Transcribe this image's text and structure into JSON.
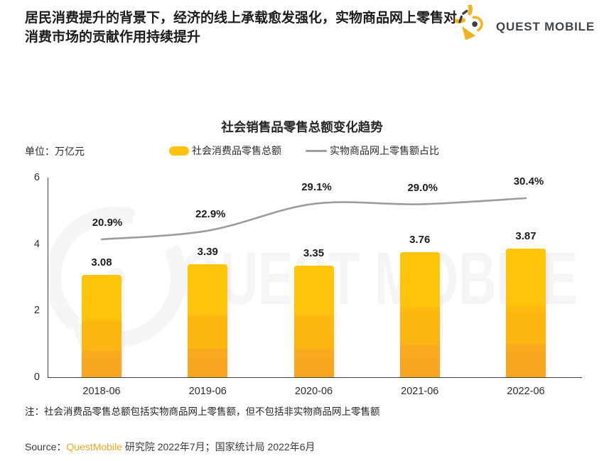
{
  "header": {
    "title": "居民消费提升的背景下，经济的线上承载愈发强化，实物商品网上零售对消费市场的贡献作用持续提升"
  },
  "logo": {
    "brand_text": "QUEST MOBILE"
  },
  "chart_data": {
    "type": "bar",
    "title": "社会销售品零售总额变化趋势",
    "unit_label": "单位：万亿元",
    "categories": [
      "2018-06",
      "2019-06",
      "2020-06",
      "2021-06",
      "2022-06"
    ],
    "series": [
      {
        "name": "社会消费品零售总额",
        "type": "bar",
        "unit": "万亿元",
        "values": [
          3.08,
          3.39,
          3.35,
          3.76,
          3.87
        ]
      },
      {
        "name": "实物商品网上零售额占比",
        "type": "line",
        "unit": "%",
        "values": [
          20.9,
          22.9,
          29.1,
          29.0,
          30.4
        ]
      }
    ],
    "ylim": [
      0,
      6
    ],
    "yticks": [
      0,
      2,
      4,
      6
    ],
    "grid": false,
    "legend_position": "top",
    "colors": {
      "bar": "#FFC20E",
      "line": "#9C9C9C",
      "accent": "#F5A623"
    }
  },
  "note": "注：社会消费品零售总额包括实物商品网上零售额，但不包括非实物商品网上零售额",
  "source": {
    "label": "Source：",
    "brand": "QuestMobile",
    "detail": " 研究院 2022年7月；国家统计局 2022年6月"
  },
  "watermark": {
    "text": "QUEST MOBILE"
  }
}
